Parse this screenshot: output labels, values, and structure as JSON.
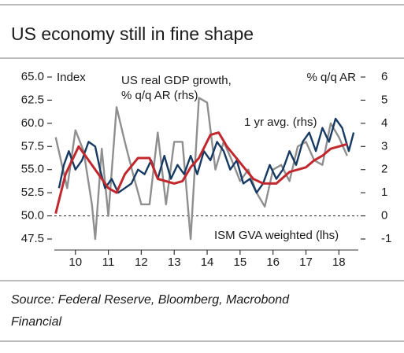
{
  "chart_data": {
    "type": "line",
    "title": "US economy still in fine shape",
    "source": [
      "Source: Federal Reserve, Bloomberg, Macrobond",
      "Financial"
    ],
    "y_label": "Index",
    "y2_label": "% q/q AR",
    "annotations": [
      {
        "text": [
          "US real GDP growth,",
          "% q/q AR (rhs)"
        ],
        "series": 1
      },
      {
        "text": [
          "1 yr avg. (rhs)"
        ],
        "series": 2
      },
      {
        "text": [
          "ISM GVA weighted (lhs)"
        ],
        "series": 0
      }
    ],
    "xlim": [
      2009.86,
      2019.09
    ],
    "xticks": [
      {
        "value": 2010.5,
        "label": "10"
      },
      {
        "value": 2011.5,
        "label": "11"
      },
      {
        "value": 2012.5,
        "label": "12"
      },
      {
        "value": 2013.5,
        "label": "13"
      },
      {
        "value": 2014.5,
        "label": "14"
      },
      {
        "value": 2015.5,
        "label": "15"
      },
      {
        "value": 2016.5,
        "label": "16"
      },
      {
        "value": 2017.5,
        "label": "17"
      },
      {
        "value": 2018.5,
        "label": "18"
      }
    ],
    "ylim": [
      47.5,
      65
    ],
    "yticks": [
      {
        "value": 47.5,
        "label": "47.5"
      },
      {
        "value": 50,
        "label": "50.0"
      },
      {
        "value": 52.5,
        "label": "52.5"
      },
      {
        "value": 55,
        "label": "55.0"
      },
      {
        "value": 57.5,
        "label": "57.5"
      },
      {
        "value": 60,
        "label": "60.0"
      },
      {
        "value": 62.5,
        "label": "62.5"
      },
      {
        "value": 65,
        "label": "65.0"
      }
    ],
    "y2lim": [
      -1,
      6
    ],
    "y2ticks": [
      -1,
      0,
      1,
      2,
      3,
      4,
      5,
      6
    ],
    "baseline": 50,
    "series": [
      {
        "name": "ISM GVA weighted (lhs)",
        "color": "#173a63",
        "x": [
          2010.0,
          2010.15,
          2010.3,
          2010.5,
          2010.7,
          2010.9,
          2011.1,
          2011.25,
          2011.4,
          2011.6,
          2011.8,
          2012.0,
          2012.2,
          2012.4,
          2012.6,
          2012.8,
          2013.0,
          2013.2,
          2013.4,
          2013.6,
          2013.8,
          2014.0,
          2014.2,
          2014.4,
          2014.6,
          2014.8,
          2015.0,
          2015.2,
          2015.4,
          2015.6,
          2015.8,
          2016.0,
          2016.2,
          2016.4,
          2016.6,
          2016.8,
          2017.0,
          2017.2,
          2017.4,
          2017.6,
          2017.8,
          2018.0,
          2018.2,
          2018.4,
          2018.6,
          2018.8,
          2018.95
        ],
        "values": [
          53,
          55.5,
          57,
          55,
          56,
          58,
          57.5,
          55,
          53,
          54,
          52.5,
          53,
          53.5,
          55,
          54.5,
          56,
          54,
          56.5,
          54,
          55.5,
          54.5,
          56.5,
          54.5,
          57,
          56,
          58,
          57,
          55,
          56,
          53.5,
          54,
          52.5,
          53.5,
          55.5,
          54,
          55,
          57,
          55.5,
          58,
          59,
          57,
          59.5,
          58,
          60.5,
          59.5,
          57,
          59
        ],
        "axis": "y"
      },
      {
        "name": "US real GDP growth, % q/q AR (rhs)",
        "color": "#8f8f8f",
        "x": [
          2009.9,
          2010.25,
          2010.5,
          2010.75,
          2011.0,
          2011.1,
          2011.3,
          2011.5,
          2011.75,
          2012.0,
          2012.25,
          2012.5,
          2012.75,
          2013.0,
          2013.25,
          2013.5,
          2013.75,
          2014.0,
          2014.25,
          2014.5,
          2014.75,
          2015.0,
          2015.25,
          2015.5,
          2015.75,
          2016.0,
          2016.25,
          2016.5,
          2016.75,
          2017.0,
          2017.25,
          2017.5,
          2017.75,
          2018.0,
          2018.25,
          2018.5,
          2018.75
        ],
        "values": [
          3.4,
          1.2,
          3.7,
          2.8,
          0.5,
          -1.0,
          2.9,
          0.0,
          4.7,
          3.2,
          1.8,
          0.5,
          0.5,
          3.6,
          0.5,
          3.2,
          3.2,
          -1.0,
          5.1,
          4.9,
          2.0,
          3.2,
          2.4,
          1.5,
          2.0,
          1.0,
          0.4,
          2.0,
          2.2,
          1.5,
          3.0,
          3.2,
          2.4,
          2.2,
          4.0,
          3.4,
          2.6
        ],
        "axis": "y2"
      },
      {
        "name": "1 yr avg. (rhs)",
        "color": "#c0282d",
        "x": [
          2009.9,
          2010.2,
          2010.6,
          2011.0,
          2011.5,
          2011.75,
          2012.0,
          2012.4,
          2012.75,
          2013.0,
          2013.5,
          2013.75,
          2014.0,
          2014.25,
          2014.6,
          2014.85,
          2015.1,
          2015.5,
          2015.9,
          2016.2,
          2016.6,
          2017.0,
          2017.5,
          2017.75,
          2018.0,
          2018.25,
          2018.5,
          2018.75
        ],
        "values": [
          0.1,
          1.8,
          3.0,
          2.2,
          1.2,
          1.0,
          1.8,
          2.5,
          2.5,
          1.6,
          1.4,
          1.5,
          2.1,
          2.5,
          3.5,
          3.6,
          3.0,
          2.3,
          1.6,
          1.4,
          1.4,
          1.9,
          2.1,
          2.4,
          2.6,
          2.9,
          3.0,
          3.1
        ],
        "axis": "y2"
      }
    ]
  }
}
